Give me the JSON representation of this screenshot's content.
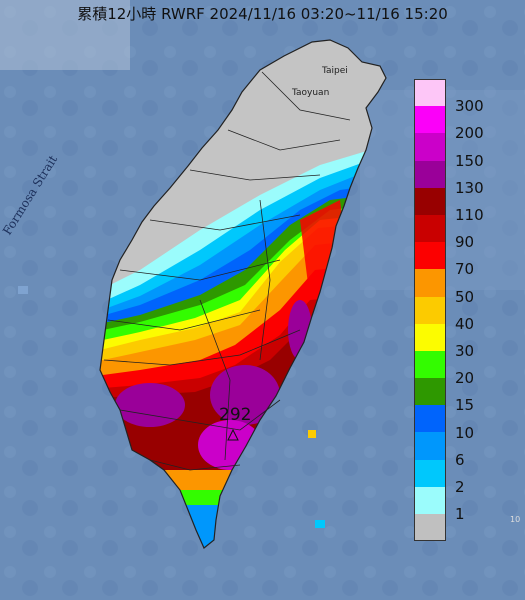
{
  "title": "累積12小時 RWRF 2024/11/16 03:20~11/16 15:20",
  "labels": {
    "strait": "Formosa Strait",
    "taipei": "Taipei",
    "taoyuan": "Taoyuan",
    "max_value": "292",
    "edge_mark": "10"
  },
  "legend": {
    "levels": [
      {
        "label": "300",
        "color": "#fdc6f7"
      },
      {
        "label": "200",
        "color": "#fb00f9"
      },
      {
        "label": "150",
        "color": "#cb00c9"
      },
      {
        "label": "130",
        "color": "#9a0099"
      },
      {
        "label": "110",
        "color": "#980000"
      },
      {
        "label": "90",
        "color": "#c90000"
      },
      {
        "label": "70",
        "color": "#fc0000"
      },
      {
        "label": "50",
        "color": "#fc9600"
      },
      {
        "label": "40",
        "color": "#fccb00"
      },
      {
        "label": "30",
        "color": "#fcfc00"
      },
      {
        "label": "20",
        "color": "#33fc00"
      },
      {
        "label": "15",
        "color": "#2e9800"
      },
      {
        "label": "10",
        "color": "#0064fc"
      },
      {
        "label": "6",
        "color": "#0097fc"
      },
      {
        "label": "2",
        "color": "#00c8fc"
      },
      {
        "label": "1",
        "color": "#9bfcfc"
      },
      {
        "label": "",
        "color": "#c0c0c0"
      }
    ]
  },
  "colors": {
    "sea": "#6b8db8",
    "land_base": "#c4c4c4"
  }
}
